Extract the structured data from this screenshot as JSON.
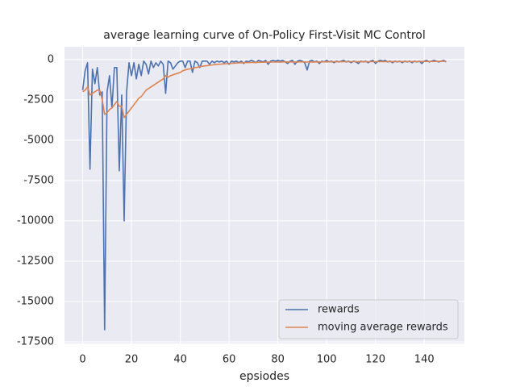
{
  "chart_data": {
    "type": "line",
    "title": "average learning curve of On-Policy First-Visit MC Control",
    "xlabel": "epsiodes",
    "x": [
      0,
      1,
      2,
      3,
      4,
      5,
      6,
      7,
      8,
      9,
      10,
      11,
      12,
      13,
      14,
      15,
      16,
      17,
      18,
      19,
      20,
      21,
      22,
      23,
      24,
      25,
      26,
      27,
      28,
      29,
      30,
      31,
      32,
      33,
      34,
      35,
      36,
      37,
      38,
      39,
      40,
      41,
      42,
      43,
      44,
      45,
      46,
      47,
      48,
      49,
      50,
      51,
      52,
      53,
      54,
      55,
      56,
      57,
      58,
      59,
      60,
      61,
      62,
      63,
      64,
      65,
      66,
      67,
      68,
      69,
      70,
      71,
      72,
      73,
      74,
      75,
      76,
      77,
      78,
      79,
      80,
      81,
      82,
      83,
      84,
      85,
      86,
      87,
      88,
      89,
      90,
      91,
      92,
      93,
      94,
      95,
      96,
      97,
      98,
      99,
      100,
      101,
      102,
      103,
      104,
      105,
      106,
      107,
      108,
      109,
      110,
      111,
      112,
      113,
      114,
      115,
      116,
      117,
      118,
      119,
      120,
      121,
      122,
      123,
      124,
      125,
      126,
      127,
      128,
      129,
      130,
      131,
      132,
      133,
      134,
      135,
      136,
      137,
      138,
      139,
      140,
      141,
      142,
      143,
      144,
      145,
      146,
      147,
      148,
      149
    ],
    "series": [
      {
        "name": "rewards",
        "color": "#4c72b0",
        "values": [
          -1900,
          -700,
          -200,
          -6800,
          -600,
          -1500,
          -500,
          -2200,
          -2000,
          -16750,
          -2000,
          -1000,
          -3000,
          -500,
          -500,
          -6900,
          -2200,
          -10000,
          -2000,
          -200,
          -1000,
          -200,
          -1200,
          -300,
          -1000,
          -100,
          -300,
          -900,
          -100,
          -500,
          -200,
          -400,
          -100,
          -300,
          -2100,
          -100,
          -200,
          -600,
          -400,
          -200,
          -100,
          -100,
          -500,
          -100,
          -100,
          -800,
          -100,
          -200,
          -500,
          -100,
          -100,
          -100,
          -300,
          -100,
          -200,
          -100,
          -150,
          -100,
          -200,
          -100,
          -300,
          -100,
          -150,
          -100,
          -200,
          -100,
          -250,
          -100,
          -150,
          -50,
          -100,
          -200,
          -50,
          -100,
          -150,
          -50,
          -300,
          -100,
          -50,
          -100,
          -50,
          -100,
          -50,
          -150,
          -250,
          -100,
          -50,
          -300,
          -100,
          -50,
          -100,
          -200,
          -650,
          -100,
          -50,
          -150,
          -100,
          -250,
          -100,
          -150,
          -50,
          -150,
          -100,
          -200,
          -100,
          -150,
          -100,
          -50,
          -150,
          -100,
          -200,
          -100,
          -150,
          -250,
          -100,
          -150,
          -100,
          -200,
          -100,
          -50,
          -250,
          -100,
          -50,
          -100,
          -50,
          -150,
          -100,
          -200,
          -100,
          -150,
          -100,
          -200,
          -100,
          -150,
          -100,
          -200,
          -100,
          -150,
          -100,
          -250,
          -100,
          -50,
          -150,
          -100,
          -50,
          -100,
          -150,
          -100,
          -50,
          -150
        ]
      },
      {
        "name": "moving average rewards",
        "color": "#dd8452",
        "values": [
          -2000,
          -1900,
          -1700,
          -2200,
          -2100,
          -2000,
          -1900,
          -1900,
          -2500,
          -3400,
          -3300,
          -3100,
          -3000,
          -2800,
          -2600,
          -2900,
          -2900,
          -3600,
          -3400,
          -3200,
          -3000,
          -2800,
          -2600,
          -2400,
          -2300,
          -2100,
          -1900,
          -1800,
          -1700,
          -1600,
          -1500,
          -1400,
          -1300,
          -1200,
          -1000,
          -1100,
          -1000,
          -950,
          -900,
          -850,
          -800,
          -700,
          -650,
          -600,
          -580,
          -550,
          -500,
          -480,
          -450,
          -420,
          -400,
          -380,
          -360,
          -340,
          -320,
          -300,
          -290,
          -280,
          -270,
          -260,
          -250,
          -240,
          -230,
          -220,
          -210,
          -200,
          -195,
          -190,
          -190,
          -185,
          -180,
          -180,
          -175,
          -170,
          -170,
          -165,
          -165,
          -160,
          -160,
          -160,
          -155,
          -155,
          -150,
          -150,
          -150,
          -150,
          -150,
          -155,
          -155,
          -150,
          -150,
          -150,
          -160,
          -160,
          -155,
          -155,
          -150,
          -150,
          -150,
          -145,
          -145,
          -145,
          -140,
          -140,
          -140,
          -140,
          -140,
          -135,
          -135,
          -135,
          -135,
          -135,
          -135,
          -140,
          -140,
          -140,
          -140,
          -140,
          -135,
          -135,
          -135,
          -130,
          -130,
          -130,
          -130,
          -130,
          -130,
          -130,
          -130,
          -130,
          -130,
          -130,
          -130,
          -130,
          -130,
          -130,
          -130,
          -130,
          -125,
          -125,
          -125,
          -120,
          -120,
          -120,
          -120,
          -120,
          -115,
          -115,
          -115,
          -110
        ]
      }
    ],
    "xlim": [
      -7.45,
      156.45
    ],
    "xticks": [
      0,
      20,
      40,
      60,
      80,
      100,
      120,
      140
    ],
    "ylim": [
      -17600,
      790
    ],
    "yticks": [
      0,
      -2500,
      -5000,
      -7500,
      -10000,
      -12500,
      -15000,
      -17500
    ],
    "grid": true,
    "legend": "lower right"
  }
}
